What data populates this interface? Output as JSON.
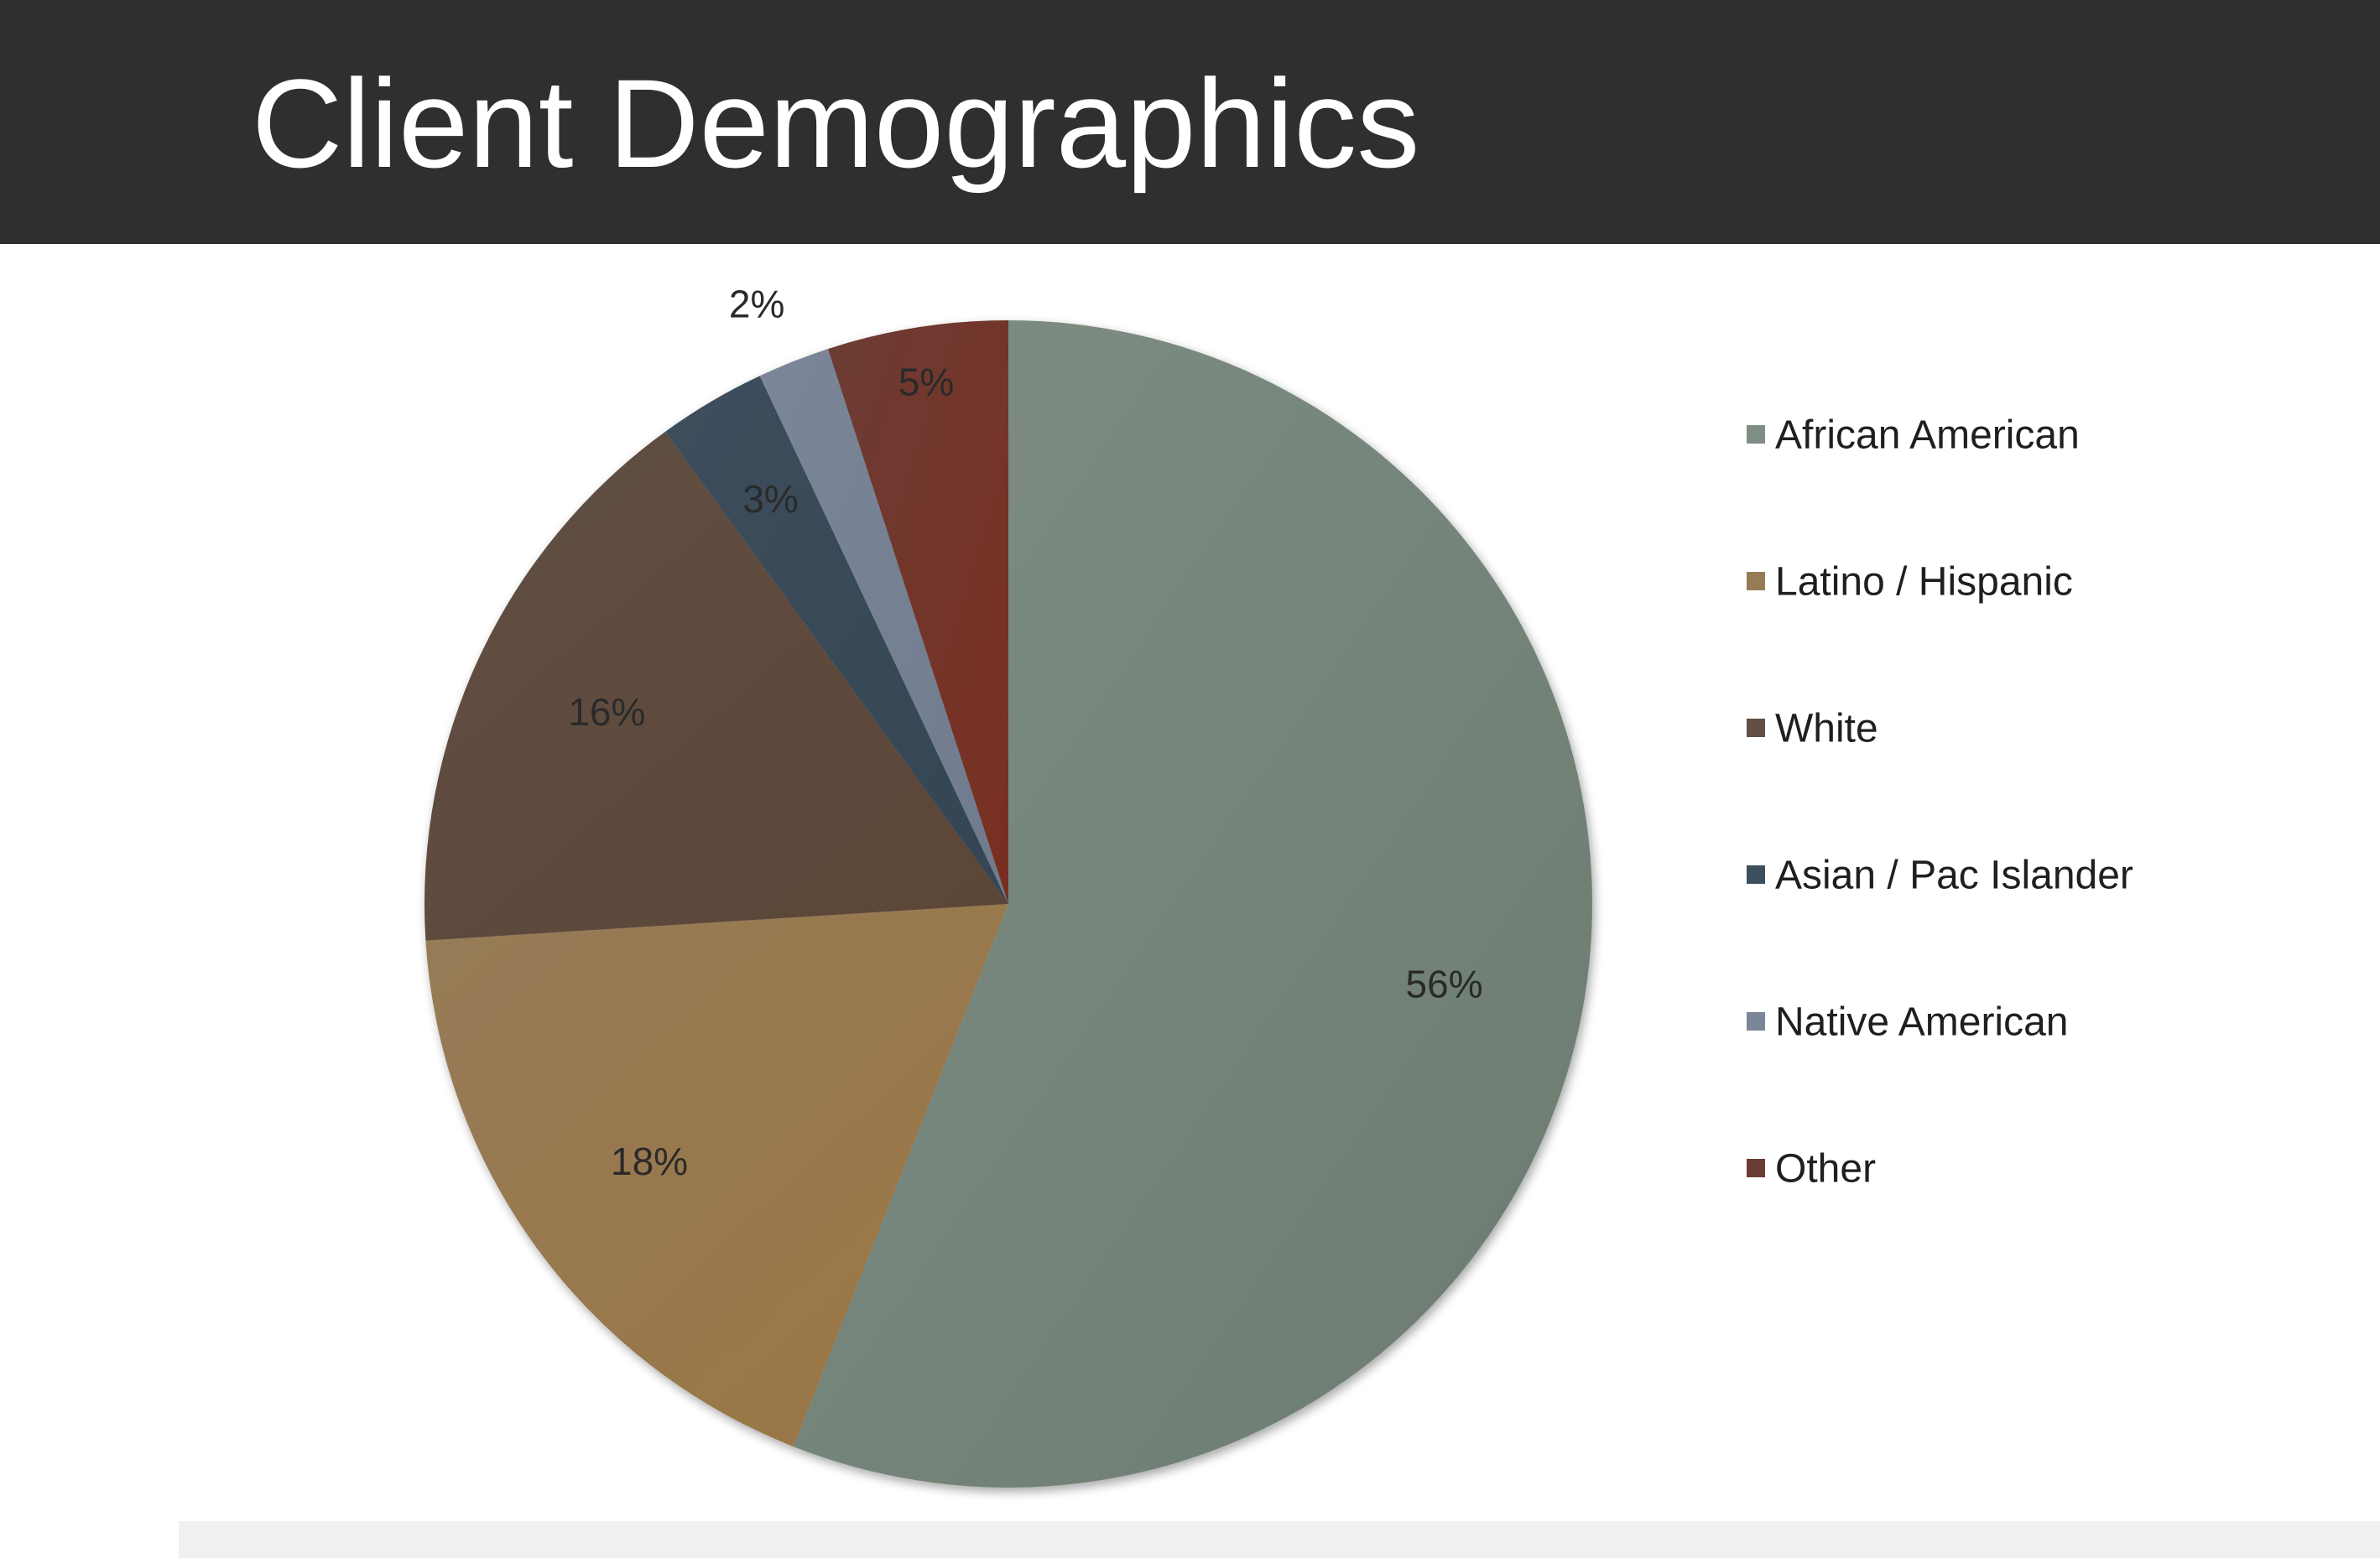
{
  "header": {
    "title": "Client Demographics"
  },
  "chart_data": {
    "type": "pie",
    "title": "Client Demographics",
    "legend_position": "right",
    "start_angle_deg": 0,
    "direction": "clockwise",
    "slices": [
      {
        "name": "African American",
        "value": 56,
        "label": "56%",
        "color": "#7f8e84",
        "color_dark": "#6b7b70"
      },
      {
        "name": "Latino / Hispanic",
        "value": 18,
        "label": "18%",
        "color": "#967b57",
        "color_dark": "#9a7644"
      },
      {
        "name": "White",
        "value": 16,
        "label": "16%",
        "color": "#625045",
        "color_dark": "#5a4536"
      },
      {
        "name": "Asian / Pac Islander",
        "value": 3,
        "label": "3%",
        "color": "#3d4e5c",
        "color_dark": "#344453"
      },
      {
        "name": "Native American",
        "value": 2,
        "label": "2%",
        "color": "#7b8698",
        "color_dark": "#6f7b8d"
      },
      {
        "name": "Other",
        "value": 5,
        "label": "5%",
        "color": "#6b3c33",
        "color_dark": "#7a2e22"
      }
    ]
  }
}
